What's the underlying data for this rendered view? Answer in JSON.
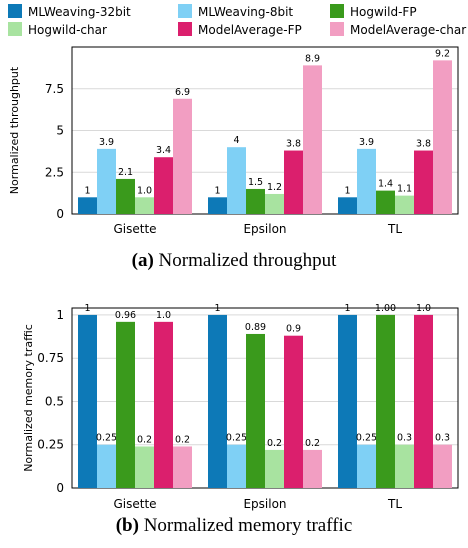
{
  "legend": {
    "items": [
      {
        "name": "MLWeaving-32bit",
        "color": "#0d79b7"
      },
      {
        "name": "MLWeaving-8bit",
        "color": "#7fd0f5"
      },
      {
        "name": "Hogwild-FP",
        "color": "#3a9a1c"
      },
      {
        "name": "Hogwild-char",
        "color": "#a8e3a0"
      },
      {
        "name": "ModelAverage-FP",
        "color": "#db1f6d"
      },
      {
        "name": "ModelAverage-char",
        "color": "#f29ec2"
      }
    ]
  },
  "captions": {
    "a": {
      "tag": "(a)",
      "text": "Normalized throughput"
    },
    "b": {
      "tag": "(b)",
      "text": "Normalized memory traffic"
    }
  },
  "chart_data": [
    {
      "type": "bar",
      "title": "",
      "ylabel": "Normalized throughput",
      "xlabel": "",
      "ylim": [
        0,
        10
      ],
      "yticks": [
        0,
        2.5,
        5,
        7.5
      ],
      "ytick_labels": [
        "0",
        "2.5",
        "5",
        "7.5"
      ],
      "grid": true,
      "categories": [
        "Gisette",
        "Epsilon",
        "TL"
      ],
      "series": [
        {
          "name": "MLWeaving-32bit",
          "values": [
            1,
            1,
            1
          ],
          "labels": [
            "1",
            "1",
            "1"
          ]
        },
        {
          "name": "MLWeaving-8bit",
          "values": [
            3.9,
            4,
            3.9
          ],
          "labels": [
            "3.9",
            "4",
            "3.9"
          ]
        },
        {
          "name": "Hogwild-FP",
          "values": [
            2.1,
            1.5,
            1.4
          ],
          "labels": [
            "2.1",
            "1.5",
            "1.4"
          ]
        },
        {
          "name": "Hogwild-char",
          "values": [
            1.0,
            1.2,
            1.1
          ],
          "labels": [
            "1.0",
            "1.2",
            "1.1"
          ]
        },
        {
          "name": "ModelAverage-FP",
          "values": [
            3.4,
            3.8,
            3.8
          ],
          "labels": [
            "3.4",
            "3.8",
            "3.8"
          ]
        },
        {
          "name": "ModelAverage-char",
          "values": [
            6.9,
            8.9,
            9.2
          ],
          "labels": [
            "6.9",
            "8.9",
            "9.2"
          ]
        }
      ]
    },
    {
      "type": "bar",
      "title": "",
      "ylabel": "Normalized memory traffic",
      "xlabel": "",
      "ylim": [
        0,
        1.04
      ],
      "yticks": [
        0,
        0.25,
        0.5,
        0.75,
        1
      ],
      "ytick_labels": [
        "0",
        "0.25",
        "0.5",
        "0.75",
        "1"
      ],
      "grid": true,
      "categories": [
        "Gisette",
        "Epsilon",
        "TL"
      ],
      "series": [
        {
          "name": "MLWeaving-32bit",
          "values": [
            1,
            1,
            1
          ],
          "labels": [
            "1",
            "1",
            "1"
          ]
        },
        {
          "name": "MLWeaving-8bit",
          "values": [
            0.25,
            0.25,
            0.25
          ],
          "labels": [
            "0.25",
            "0.25",
            "0.25"
          ]
        },
        {
          "name": "Hogwild-FP",
          "values": [
            0.96,
            0.89,
            1.0
          ],
          "labels": [
            "0.96",
            "0.89",
            "1.00"
          ]
        },
        {
          "name": "Hogwild-char",
          "values": [
            0.24,
            0.22,
            0.25
          ],
          "labels": [
            "0.2",
            "0.2",
            "0.3"
          ]
        },
        {
          "name": "ModelAverage-FP",
          "values": [
            0.96,
            0.88,
            1.0
          ],
          "labels": [
            "1.0",
            "0.9",
            "1.0"
          ]
        },
        {
          "name": "ModelAverage-char",
          "values": [
            0.24,
            0.22,
            0.25
          ],
          "labels": [
            "0.2",
            "0.2",
            "0.3"
          ]
        }
      ]
    }
  ]
}
